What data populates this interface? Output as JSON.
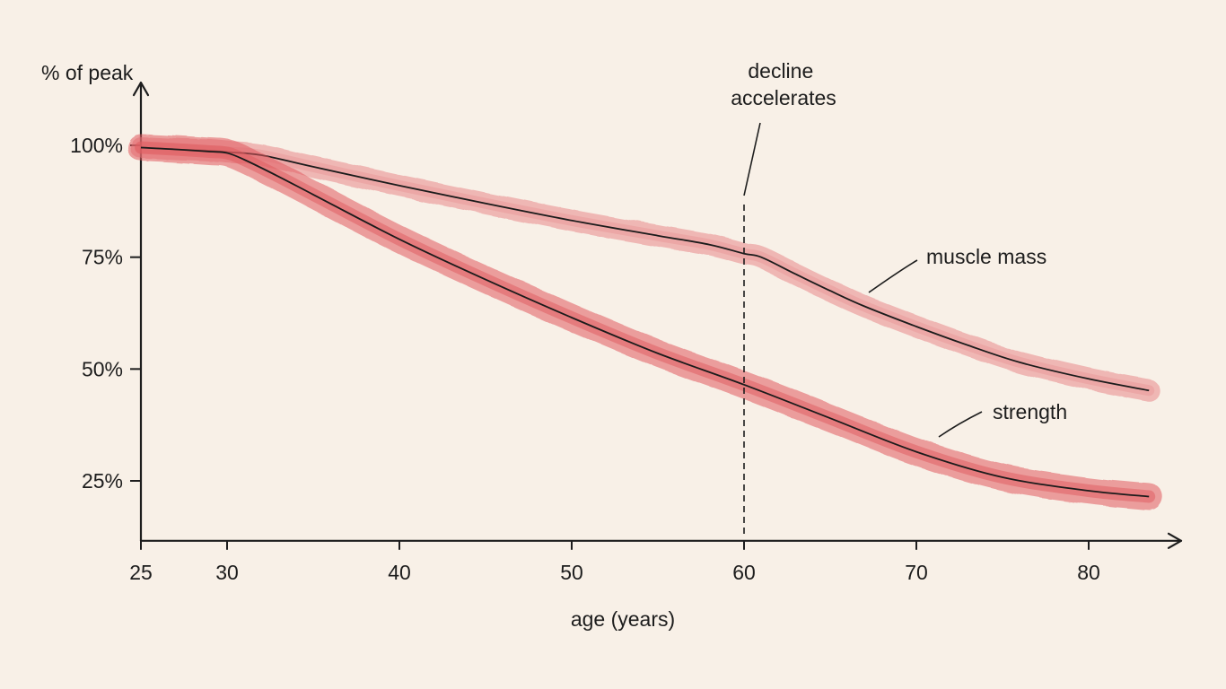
{
  "chart_data": {
    "type": "line",
    "xlabel": "age (years)",
    "ylabel": "% of peak",
    "xlim": [
      25,
      84
    ],
    "ylim": [
      10,
      105
    ],
    "x_ticks": [
      {
        "value": 25,
        "label": "25"
      },
      {
        "value": 30,
        "label": "30"
      },
      {
        "value": 40,
        "label": "40"
      },
      {
        "value": 50,
        "label": "50"
      },
      {
        "value": 60,
        "label": "60"
      },
      {
        "value": 70,
        "label": "70"
      },
      {
        "value": 80,
        "label": "80"
      }
    ],
    "y_ticks": [
      {
        "value": 25,
        "label": "25%"
      },
      {
        "value": 50,
        "label": "50%"
      },
      {
        "value": 75,
        "label": "75%"
      },
      {
        "value": 100,
        "label": "100%"
      }
    ],
    "grid": false,
    "series": [
      {
        "name": "muscle mass",
        "color": "#e8898b",
        "x": [
          25,
          27,
          29,
          30,
          32,
          35,
          40,
          45,
          50,
          55,
          58,
          60,
          61,
          63,
          65,
          67,
          70,
          73,
          76,
          80,
          83.5
        ],
        "y": [
          99.5,
          99.1,
          98.8,
          98.5,
          97.8,
          95.2,
          91.0,
          87.0,
          83.2,
          79.8,
          77.8,
          75.8,
          75.0,
          71.2,
          67.5,
          64.0,
          59.5,
          55.3,
          51.5,
          47.8,
          45.2
        ]
      },
      {
        "name": "strength",
        "color": "#e05a5e",
        "x": [
          25,
          27,
          29,
          30,
          31,
          33,
          35,
          40,
          45,
          50,
          55,
          60,
          65,
          70,
          75,
          80,
          83.5
        ],
        "y": [
          99.5,
          99.1,
          98.6,
          98.3,
          96.8,
          93.0,
          89.0,
          79.0,
          70.0,
          61.5,
          53.5,
          46.5,
          39.0,
          31.5,
          25.8,
          22.8,
          21.5
        ]
      }
    ],
    "annotations": [
      {
        "text_lines": [
          "decline",
          "accelerates"
        ],
        "x": 60,
        "kind": "vertical-dashed"
      },
      {
        "text": "muscle mass",
        "series": "muscle mass"
      },
      {
        "text": "strength",
        "series": "strength"
      }
    ]
  }
}
